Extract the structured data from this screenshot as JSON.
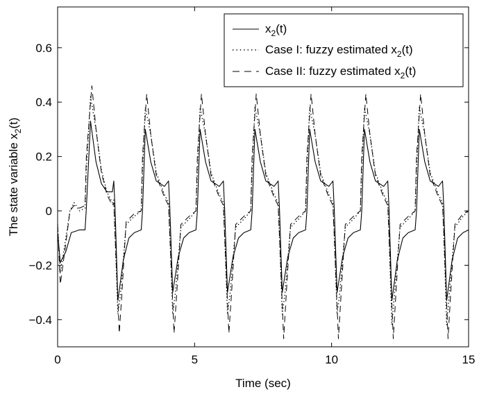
{
  "chart_data": {
    "type": "line",
    "xlabel": "Time (sec)",
    "ylabel": {
      "main": "The state variable x",
      "sub": "2",
      "suffix": "(t)"
    },
    "xlim": [
      0,
      15
    ],
    "ylim": [
      -0.5,
      0.75
    ],
    "xticks": [
      0,
      5,
      10,
      15
    ],
    "yticks": [
      -0.4,
      -0.2,
      0,
      0.2,
      0.4,
      0.6
    ],
    "ytick_labels": [
      "−0.4",
      "−0.2",
      "0",
      "0.2",
      "0.4",
      "0.6"
    ],
    "xtick_labels": [
      "0",
      "5",
      "10",
      "15"
    ],
    "grid": false,
    "legend_position": "top-right",
    "series": [
      {
        "name": {
          "main": "x",
          "sub": "2",
          "suffix": "(t)"
        },
        "style": "solid",
        "points": [
          [
            0,
            -0.08
          ],
          [
            0.1,
            -0.19
          ],
          [
            0.3,
            -0.15
          ],
          [
            0.5,
            -0.08
          ],
          [
            0.8,
            -0.07
          ],
          [
            1.0,
            -0.07
          ],
          [
            1.05,
            0.01
          ],
          [
            1.2,
            0.33
          ],
          [
            1.4,
            0.18
          ],
          [
            1.6,
            0.1
          ],
          [
            1.8,
            0.07
          ],
          [
            2.0,
            0.07
          ],
          [
            2.05,
            0.11
          ],
          [
            2.1,
            0.0
          ],
          [
            2.2,
            -0.33
          ],
          [
            2.4,
            -0.18
          ],
          [
            2.6,
            -0.1
          ],
          [
            2.8,
            -0.08
          ],
          [
            3.05,
            -0.07
          ],
          [
            3.1,
            0.0
          ],
          [
            3.2,
            0.3
          ],
          [
            3.4,
            0.18
          ],
          [
            3.6,
            0.11
          ],
          [
            3.9,
            0.09
          ],
          [
            4.05,
            0.11
          ],
          [
            4.1,
            0.0
          ],
          [
            4.2,
            -0.3
          ],
          [
            4.4,
            -0.17
          ],
          [
            4.6,
            -0.1
          ],
          [
            4.8,
            -0.08
          ],
          [
            5.05,
            -0.07
          ],
          [
            5.1,
            0.0
          ],
          [
            5.2,
            0.3
          ],
          [
            5.4,
            0.18
          ],
          [
            5.6,
            0.11
          ],
          [
            5.9,
            0.09
          ],
          [
            6.05,
            0.11
          ],
          [
            6.1,
            0.0
          ],
          [
            6.2,
            -0.3
          ],
          [
            6.4,
            -0.17
          ],
          [
            6.6,
            -0.1
          ],
          [
            6.8,
            -0.08
          ],
          [
            7.05,
            -0.07
          ],
          [
            7.1,
            0.0
          ],
          [
            7.2,
            0.3
          ],
          [
            7.4,
            0.18
          ],
          [
            7.6,
            0.11
          ],
          [
            7.9,
            0.09
          ],
          [
            8.05,
            0.11
          ],
          [
            8.1,
            0.0
          ],
          [
            8.2,
            -0.3
          ],
          [
            8.4,
            -0.17
          ],
          [
            8.6,
            -0.1
          ],
          [
            8.8,
            -0.08
          ],
          [
            9.05,
            -0.07
          ],
          [
            9.1,
            0.0
          ],
          [
            9.2,
            0.3
          ],
          [
            9.4,
            0.18
          ],
          [
            9.6,
            0.11
          ],
          [
            9.9,
            0.09
          ],
          [
            10.05,
            0.11
          ],
          [
            10.1,
            0.0
          ],
          [
            10.2,
            -0.3
          ],
          [
            10.4,
            -0.17
          ],
          [
            10.6,
            -0.1
          ],
          [
            10.8,
            -0.08
          ],
          [
            11.05,
            -0.07
          ],
          [
            11.1,
            0.0
          ],
          [
            11.2,
            0.3
          ],
          [
            11.4,
            0.18
          ],
          [
            11.6,
            0.11
          ],
          [
            11.9,
            0.09
          ],
          [
            12.05,
            0.11
          ],
          [
            12.1,
            0.0
          ],
          [
            12.2,
            -0.33
          ],
          [
            12.4,
            -0.18
          ],
          [
            12.6,
            -0.1
          ],
          [
            12.8,
            -0.08
          ],
          [
            13.05,
            -0.07
          ],
          [
            13.1,
            0.0
          ],
          [
            13.2,
            0.3
          ],
          [
            13.4,
            0.18
          ],
          [
            13.6,
            0.11
          ],
          [
            13.9,
            0.09
          ],
          [
            14.05,
            0.11
          ],
          [
            14.1,
            0.0
          ],
          [
            14.2,
            -0.33
          ],
          [
            14.4,
            -0.18
          ],
          [
            14.6,
            -0.1
          ],
          [
            14.8,
            -0.08
          ],
          [
            15.0,
            -0.07
          ]
        ]
      },
      {
        "name": {
          "main": "Case I: fuzzy estimated x",
          "sub": "2",
          "suffix": "(t)"
        },
        "style": "dotted",
        "points": [
          [
            0,
            -0.05
          ],
          [
            0.1,
            -0.23
          ],
          [
            0.3,
            -0.1
          ],
          [
            0.45,
            0.0
          ],
          [
            0.6,
            0.03
          ],
          [
            0.8,
            0.0
          ],
          [
            1.0,
            0.01
          ],
          [
            1.05,
            0.15
          ],
          [
            1.2,
            0.42
          ],
          [
            1.4,
            0.3
          ],
          [
            1.6,
            0.15
          ],
          [
            1.8,
            0.07
          ],
          [
            2.0,
            0.03
          ],
          [
            2.05,
            0.04
          ],
          [
            2.1,
            -0.1
          ],
          [
            2.2,
            -0.38
          ],
          [
            2.3,
            -0.3
          ],
          [
            2.5,
            -0.05
          ],
          [
            2.8,
            -0.02
          ],
          [
            3.05,
            0.0
          ],
          [
            3.1,
            0.15
          ],
          [
            3.2,
            0.38
          ],
          [
            3.4,
            0.28
          ],
          [
            3.6,
            0.14
          ],
          [
            3.9,
            0.06
          ],
          [
            4.05,
            0.03
          ],
          [
            4.1,
            -0.1
          ],
          [
            4.2,
            -0.38
          ],
          [
            4.3,
            -0.3
          ],
          [
            4.5,
            -0.06
          ],
          [
            4.8,
            -0.03
          ],
          [
            5.05,
            0.0
          ],
          [
            5.1,
            0.15
          ],
          [
            5.2,
            0.38
          ],
          [
            5.4,
            0.28
          ],
          [
            5.6,
            0.14
          ],
          [
            5.9,
            0.06
          ],
          [
            6.05,
            0.03
          ],
          [
            6.1,
            -0.1
          ],
          [
            6.2,
            -0.38
          ],
          [
            6.3,
            -0.3
          ],
          [
            6.5,
            -0.06
          ],
          [
            6.8,
            -0.03
          ],
          [
            7.05,
            0.0
          ],
          [
            7.1,
            0.15
          ],
          [
            7.2,
            0.38
          ],
          [
            7.4,
            0.28
          ],
          [
            7.6,
            0.14
          ],
          [
            7.9,
            0.06
          ],
          [
            8.05,
            0.03
          ],
          [
            8.1,
            -0.1
          ],
          [
            8.2,
            -0.38
          ],
          [
            8.3,
            -0.3
          ],
          [
            8.5,
            -0.06
          ],
          [
            8.8,
            -0.03
          ],
          [
            9.05,
            0.0
          ],
          [
            9.1,
            0.15
          ],
          [
            9.2,
            0.38
          ],
          [
            9.4,
            0.28
          ],
          [
            9.6,
            0.14
          ],
          [
            9.9,
            0.06
          ],
          [
            10.05,
            0.03
          ],
          [
            10.1,
            -0.1
          ],
          [
            10.2,
            -0.38
          ],
          [
            10.3,
            -0.3
          ],
          [
            10.5,
            -0.06
          ],
          [
            10.8,
            -0.03
          ],
          [
            11.05,
            0.0
          ],
          [
            11.1,
            0.15
          ],
          [
            11.2,
            0.38
          ],
          [
            11.4,
            0.28
          ],
          [
            11.6,
            0.14
          ],
          [
            11.9,
            0.06
          ],
          [
            12.05,
            0.03
          ],
          [
            12.1,
            -0.1
          ],
          [
            12.2,
            -0.42
          ],
          [
            12.3,
            -0.3
          ],
          [
            12.5,
            -0.06
          ],
          [
            12.8,
            -0.03
          ],
          [
            13.05,
            0.0
          ],
          [
            13.1,
            0.15
          ],
          [
            13.2,
            0.38
          ],
          [
            13.4,
            0.28
          ],
          [
            13.6,
            0.14
          ],
          [
            13.9,
            0.06
          ],
          [
            14.05,
            0.03
          ],
          [
            14.1,
            -0.1
          ],
          [
            14.2,
            -0.42
          ],
          [
            14.3,
            -0.3
          ],
          [
            14.5,
            -0.06
          ],
          [
            14.8,
            -0.02
          ],
          [
            15.0,
            0.0
          ]
        ]
      },
      {
        "name": {
          "main": "Case II: fuzzy estimated x",
          "sub": "2",
          "suffix": "(t)"
        },
        "style": "dashed",
        "points": [
          [
            0,
            -0.05
          ],
          [
            0.1,
            -0.27
          ],
          [
            0.3,
            -0.12
          ],
          [
            0.45,
            0.0
          ],
          [
            0.6,
            0.02
          ],
          [
            0.8,
            0.01
          ],
          [
            1.0,
            0.02
          ],
          [
            1.05,
            0.2
          ],
          [
            1.25,
            0.46
          ],
          [
            1.4,
            0.3
          ],
          [
            1.6,
            0.14
          ],
          [
            1.8,
            0.06
          ],
          [
            2.0,
            0.02
          ],
          [
            2.05,
            0.03
          ],
          [
            2.1,
            -0.1
          ],
          [
            2.25,
            -0.45
          ],
          [
            2.35,
            -0.3
          ],
          [
            2.5,
            -0.04
          ],
          [
            2.8,
            -0.01
          ],
          [
            3.05,
            0.0
          ],
          [
            3.1,
            0.2
          ],
          [
            3.25,
            0.43
          ],
          [
            3.4,
            0.28
          ],
          [
            3.6,
            0.13
          ],
          [
            3.9,
            0.05
          ],
          [
            4.05,
            0.02
          ],
          [
            4.1,
            -0.1
          ],
          [
            4.25,
            -0.45
          ],
          [
            4.35,
            -0.3
          ],
          [
            4.5,
            -0.05
          ],
          [
            4.8,
            -0.02
          ],
          [
            5.05,
            0.0
          ],
          [
            5.1,
            0.2
          ],
          [
            5.25,
            0.43
          ],
          [
            5.4,
            0.28
          ],
          [
            5.6,
            0.13
          ],
          [
            5.9,
            0.05
          ],
          [
            6.05,
            0.02
          ],
          [
            6.1,
            -0.1
          ],
          [
            6.25,
            -0.45
          ],
          [
            6.35,
            -0.3
          ],
          [
            6.5,
            -0.05
          ],
          [
            6.8,
            -0.02
          ],
          [
            7.05,
            0.0
          ],
          [
            7.1,
            0.2
          ],
          [
            7.25,
            0.43
          ],
          [
            7.4,
            0.28
          ],
          [
            7.6,
            0.13
          ],
          [
            7.9,
            0.05
          ],
          [
            8.05,
            0.02
          ],
          [
            8.1,
            -0.1
          ],
          [
            8.25,
            -0.47
          ],
          [
            8.35,
            -0.3
          ],
          [
            8.5,
            -0.05
          ],
          [
            8.8,
            -0.02
          ],
          [
            9.05,
            0.0
          ],
          [
            9.1,
            0.2
          ],
          [
            9.25,
            0.43
          ],
          [
            9.4,
            0.28
          ],
          [
            9.6,
            0.13
          ],
          [
            9.9,
            0.05
          ],
          [
            10.05,
            0.02
          ],
          [
            10.1,
            -0.1
          ],
          [
            10.25,
            -0.47
          ],
          [
            10.35,
            -0.3
          ],
          [
            10.5,
            -0.05
          ],
          [
            10.8,
            -0.02
          ],
          [
            11.05,
            0.0
          ],
          [
            11.1,
            0.2
          ],
          [
            11.25,
            0.43
          ],
          [
            11.4,
            0.28
          ],
          [
            11.6,
            0.13
          ],
          [
            11.9,
            0.05
          ],
          [
            12.05,
            0.02
          ],
          [
            12.1,
            -0.1
          ],
          [
            12.25,
            -0.47
          ],
          [
            12.35,
            -0.3
          ],
          [
            12.5,
            -0.05
          ],
          [
            12.8,
            -0.02
          ],
          [
            13.05,
            0.0
          ],
          [
            13.1,
            0.2
          ],
          [
            13.25,
            0.43
          ],
          [
            13.4,
            0.28
          ],
          [
            13.6,
            0.13
          ],
          [
            13.9,
            0.05
          ],
          [
            14.05,
            0.02
          ],
          [
            14.1,
            -0.1
          ],
          [
            14.25,
            -0.47
          ],
          [
            14.35,
            -0.3
          ],
          [
            14.5,
            -0.05
          ],
          [
            14.8,
            -0.01
          ],
          [
            15.0,
            0.0
          ]
        ]
      }
    ]
  }
}
